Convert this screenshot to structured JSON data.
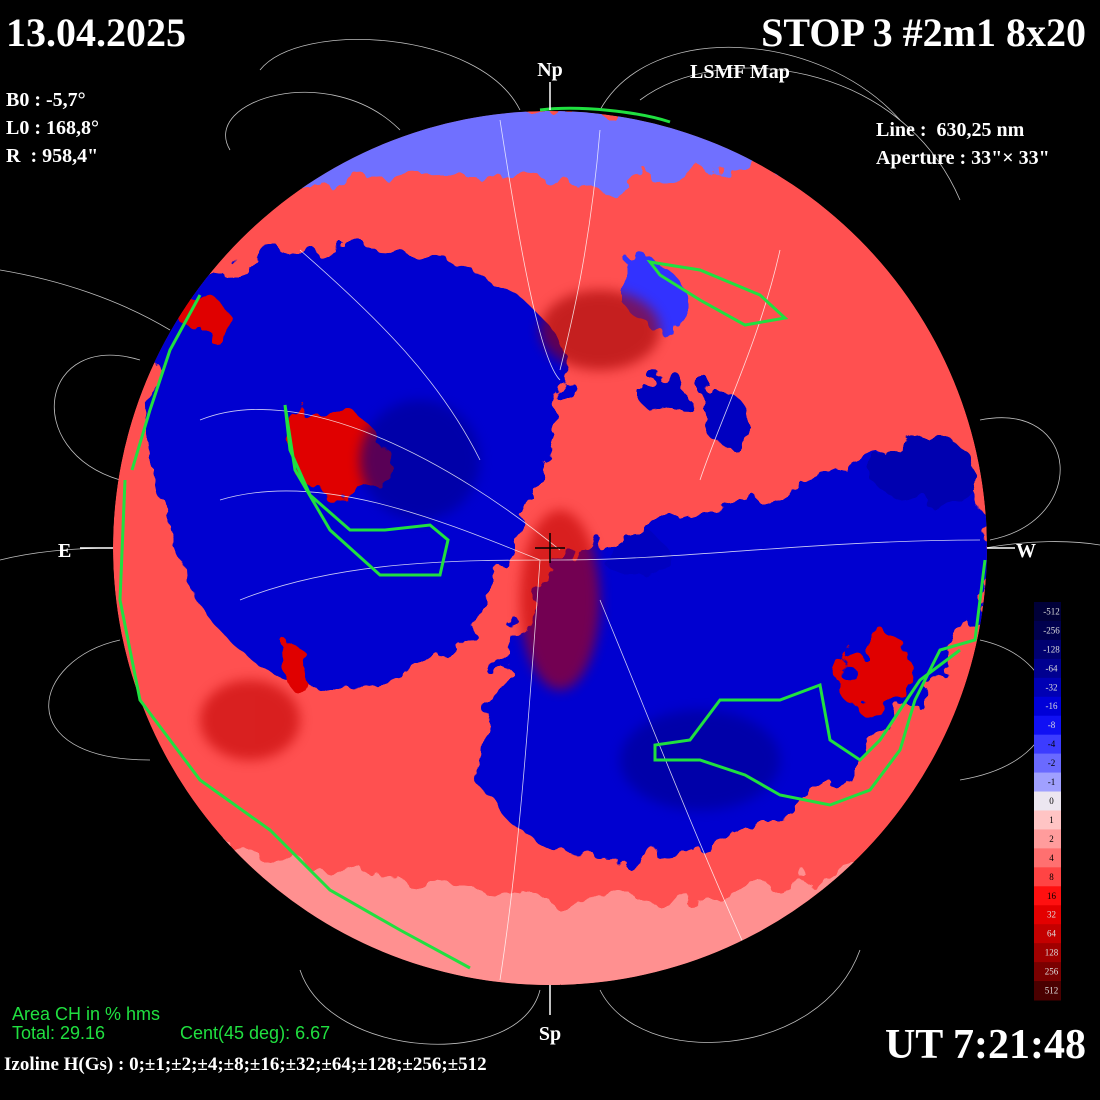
{
  "header": {
    "date": "13.04.2025",
    "title": "STOP 3 #2m1 8x20",
    "subtitle": "LSMF  Map"
  },
  "params": [
    "B0 : -5,7°",
    "L0 : 168,8°",
    "R  : 958,4\""
  ],
  "instrument": [
    "Line :  630,25 nm",
    "Aperture : 33\"× 33\""
  ],
  "directions": {
    "north": "Np",
    "south": "Sp",
    "east": "E",
    "west": "W"
  },
  "coronal_holes": {
    "title": "Area CH in % hms",
    "total": "Total: 29.16",
    "central": "Cent(45 deg): 6.67"
  },
  "time": "UT 7:21:48",
  "isolines": "Izoline H(Gs) : 0;±1;±2;±4;±8;±16;±32;±64;±128;±256;±512",
  "colorbar": {
    "labels": [
      -512,
      -256,
      -128,
      -64,
      -32,
      -16,
      -8,
      -4,
      -2,
      -1,
      0,
      1,
      2,
      4,
      8,
      16,
      32,
      64,
      128,
      256,
      512
    ],
    "colors": [
      "#000038",
      "#00004e",
      "#000070",
      "#000090",
      "#0000b4",
      "#0000d8",
      "#1010f4",
      "#3c3cff",
      "#6a6aff",
      "#a0a0ff",
      "#ece6f0",
      "#ffc4c4",
      "#ff9c9c",
      "#ff7070",
      "#ff4444",
      "#ff1010",
      "#e40000",
      "#c40000",
      "#a00000",
      "#7a0000",
      "#4a0000"
    ]
  }
}
